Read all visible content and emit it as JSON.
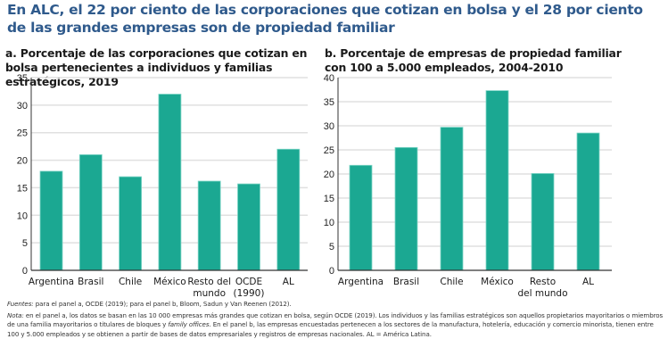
{
  "header": {
    "title": "En ALC, el 22 por ciento de las corporaciones que cotizan en bolsa y el 28 por ciento de las grandes empresas son de propiedad familiar"
  },
  "colors": {
    "bar": "#1ba892",
    "bar_edge": "#7fd6c7",
    "grid": "#e0e0e0",
    "axis": "#333333",
    "title": "#2f5a8c"
  },
  "chart_data": [
    {
      "type": "bar",
      "title": "a. Porcentaje de las corporaciones que cotizan en bolsa pertenecientes a individuos y familias estratégicos, 2019",
      "categories": [
        "Argentina",
        "Brasil",
        "Chile",
        "México",
        "Resto del mundo",
        "OCDE (1990)",
        "AL"
      ],
      "category_lines": [
        [
          "Argentina"
        ],
        [
          "Brasil"
        ],
        [
          "Chile"
        ],
        [
          "México"
        ],
        [
          "Resto del",
          "mundo"
        ],
        [
          "OCDE",
          "(1990)"
        ],
        [
          "AL"
        ]
      ],
      "values": [
        18,
        21,
        17,
        32,
        16.2,
        15.7,
        22
      ],
      "xlabel": "",
      "ylabel": "",
      "ylim": [
        0,
        35
      ],
      "yticks": [
        0,
        5,
        10,
        15,
        20,
        25,
        30,
        35
      ],
      "grid": true,
      "legend": "none"
    },
    {
      "type": "bar",
      "title": "b. Porcentaje de empresas de propiedad familiar con 100 a 5.000 empleados, 2004-2010",
      "categories": [
        "Argentina",
        "Brasil",
        "Chile",
        "México",
        "Resto del mundo",
        "AL"
      ],
      "category_lines": [
        [
          "Argentina"
        ],
        [
          "Brasil"
        ],
        [
          "Chile"
        ],
        [
          "México"
        ],
        [
          "Resto",
          "del mundo"
        ],
        [
          "AL"
        ]
      ],
      "values": [
        21.8,
        25.5,
        29.7,
        37.3,
        20.1,
        28.5
      ],
      "xlabel": "",
      "ylabel": "",
      "ylim": [
        0,
        40
      ],
      "yticks": [
        0,
        5,
        10,
        15,
        20,
        25,
        30,
        35,
        40
      ],
      "grid": true,
      "legend": "none"
    }
  ],
  "notes": {
    "sources_label": "Fuentes:",
    "sources_text": " para el panel a, OCDE (2019); para el panel b, Bloom, Sadun y Van Reenen (2012).",
    "note_label": "Nota:",
    "note_text_1": " en el panel a, los datos se basan en las 10 000 empresas más grandes que cotizan en bolsa, según OCDE (2019). Los individuos y las familias estratégicos son aquellos propietarios mayoritarios o miembros de una familia mayoritarios o titulares de bloques y ",
    "note_italic": "family offices",
    "note_text_2": ". En el panel b, las empresas encuestadas pertenecen a los sectores de la manufactura, hotelería, educación y comercio minorista, tienen entre 100 y 5.000 empleados y se obtienen a partir de bases de datos empresariales y registros de empresas nacionales. AL = América Latina."
  }
}
